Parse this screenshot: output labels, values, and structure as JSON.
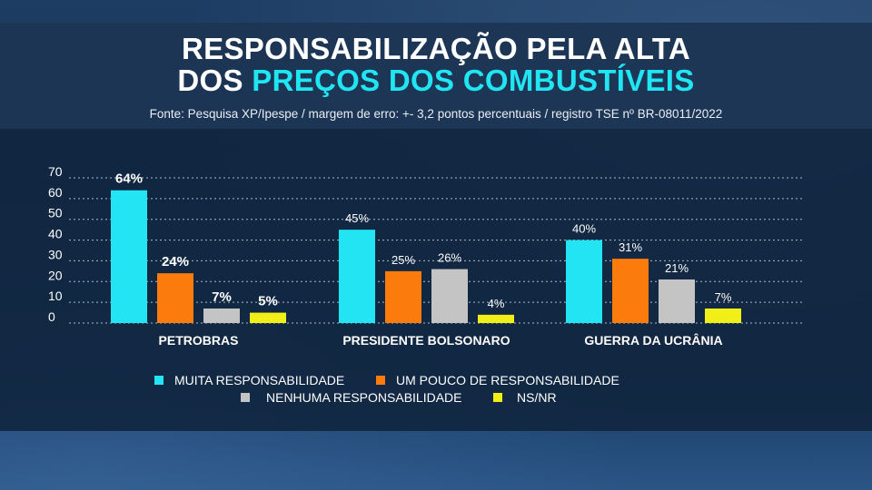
{
  "header": {
    "title_line1": "RESPONSABILIZAÇÃO PELA ALTA",
    "title_line2_prefix": "DOS ",
    "title_line2_highlight": "PREÇOS DOS COMBUSTÍVEIS",
    "source": "Fonte: Pesquisa XP/Ipespe / margem de erro: +- 3,2 pontos percentuais / registro TSE nº BR-08011/2022"
  },
  "colors": {
    "muita": "#22e4f2",
    "pouco": "#fb7c0d",
    "nenhuma": "#c4c4c4",
    "nsnr": "#f2ee18",
    "highlight": "#1fe6f2"
  },
  "chart_data": {
    "type": "bar",
    "categories": [
      "PETROBRAS",
      "PRESIDENTE BOLSONARO",
      "GUERRA DA UCRÂNIA"
    ],
    "series": [
      {
        "name": "MUITA RESPONSABILIDADE",
        "values": [
          64,
          45,
          40
        ],
        "labels": [
          "64%",
          "45%",
          "40%"
        ]
      },
      {
        "name": "UM POUCO DE RESPONSABILIDADE",
        "values": [
          24,
          25,
          31
        ],
        "labels": [
          "24%",
          "25%",
          "31%"
        ]
      },
      {
        "name": "NENHUMA RESPONSABILIDADE",
        "values": [
          7,
          26,
          21
        ],
        "labels": [
          "7%",
          "26%",
          "21%"
        ]
      },
      {
        "name": "NS/NR",
        "values": [
          5,
          4,
          7
        ],
        "labels": [
          "5%",
          "4%",
          "7%"
        ]
      }
    ],
    "ylim": [
      0,
      70
    ],
    "yticks": [
      "0",
      "10",
      "20",
      "30",
      "40",
      "50",
      "60",
      "70"
    ],
    "grid": true,
    "legend_position": "bottom"
  },
  "legend": [
    {
      "label": "MUITA RESPONSABILIDADE"
    },
    {
      "label": "UM POUCO DE RESPONSABILIDADE"
    },
    {
      "label": "NENHUMA RESPONSABILIDADE"
    },
    {
      "label": "NS/NR"
    }
  ]
}
